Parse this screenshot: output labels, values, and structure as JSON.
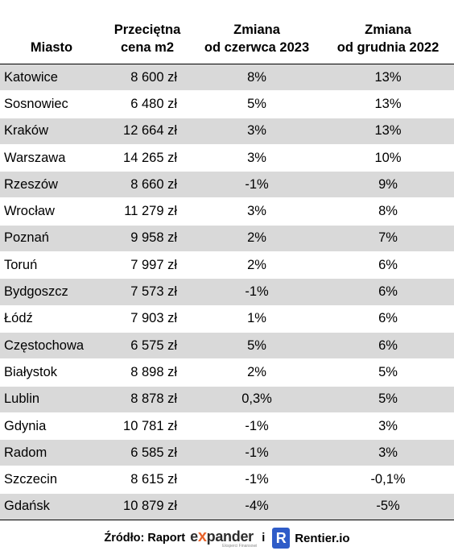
{
  "table": {
    "headers": {
      "city": "Miasto",
      "price": "Przeciętna\ncena m2",
      "change_june": "Zmiana\nod czerwca 2023",
      "change_dec": "Zmiana\nod grudnia 2022"
    },
    "rows": [
      {
        "city": "Katowice",
        "price": "8 600 zł",
        "change_june": "8%",
        "change_dec": "13%"
      },
      {
        "city": "Sosnowiec",
        "price": "6 480 zł",
        "change_june": "5%",
        "change_dec": "13%"
      },
      {
        "city": "Kraków",
        "price": "12 664 zł",
        "change_june": "3%",
        "change_dec": "13%"
      },
      {
        "city": "Warszawa",
        "price": "14 265 zł",
        "change_june": "3%",
        "change_dec": "10%"
      },
      {
        "city": "Rzeszów",
        "price": "8 660 zł",
        "change_june": "-1%",
        "change_dec": "9%"
      },
      {
        "city": "Wrocław",
        "price": "11 279 zł",
        "change_june": "3%",
        "change_dec": "8%"
      },
      {
        "city": "Poznań",
        "price": "9 958 zł",
        "change_june": "2%",
        "change_dec": "7%"
      },
      {
        "city": "Toruń",
        "price": "7 997 zł",
        "change_june": "2%",
        "change_dec": "6%"
      },
      {
        "city": "Bydgoszcz",
        "price": "7 573 zł",
        "change_june": "-1%",
        "change_dec": "6%"
      },
      {
        "city": "Łódź",
        "price": "7 903 zł",
        "change_june": "1%",
        "change_dec": "6%"
      },
      {
        "city": "Częstochowa",
        "price": "6 575 zł",
        "change_june": "5%",
        "change_dec": "6%"
      },
      {
        "city": "Białystok",
        "price": "8 898 zł",
        "change_june": "2%",
        "change_dec": "5%"
      },
      {
        "city": "Lublin",
        "price": "8 878 zł",
        "change_june": "0,3%",
        "change_dec": "5%"
      },
      {
        "city": "Gdynia",
        "price": "10 781 zł",
        "change_june": "-1%",
        "change_dec": "3%"
      },
      {
        "city": "Radom",
        "price": "6 585 zł",
        "change_june": "-1%",
        "change_dec": "3%"
      },
      {
        "city": "Szczecin",
        "price": "8 615 zł",
        "change_june": "-1%",
        "change_dec": "-0,1%"
      },
      {
        "city": "Gdańsk",
        "price": "10 879 zł",
        "change_june": "-4%",
        "change_dec": "-5%"
      }
    ]
  },
  "footer": {
    "source_label": "Źródło: Raport",
    "expander_pre": "e",
    "expander_x": "x",
    "expander_post": "pander",
    "expander_tag": "Eksperci Finansowi",
    "connector": "i",
    "rentier_badge": "R",
    "rentier_name": "Rentier.io"
  },
  "colors": {
    "stripe": "#d9d9d9",
    "expander_accent": "#e8632b",
    "rentier_blue": "#2f5cc8"
  }
}
